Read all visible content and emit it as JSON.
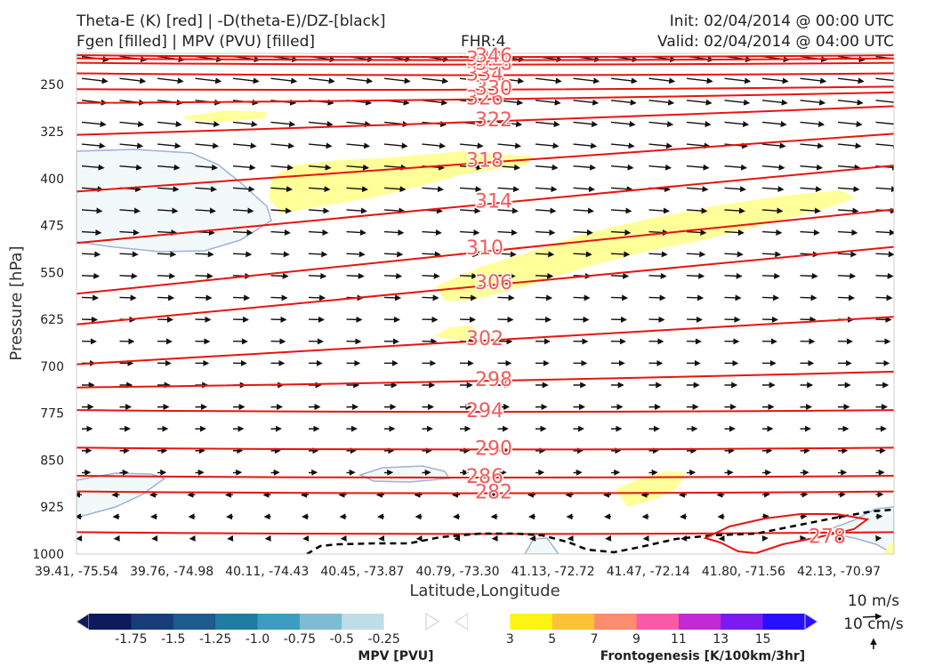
{
  "header": {
    "title_line1": "Theta-E (K) [red] | -D(theta-E)/DZ-[black]",
    "title_line2": "Fgen [filled] | MPV (PVU) [filled]",
    "fhr": "FHR:4",
    "init": "Init: 02/04/2014 @ 00:00 UTC",
    "valid": "Valid: 02/04/2014 @ 04:00 UTC"
  },
  "chart_data": {
    "type": "contour-cross-section",
    "ylabel": "Pressure [hPa]",
    "xlabel": "Latitude,Longitude",
    "yticks": [
      250,
      325,
      400,
      475,
      550,
      625,
      700,
      775,
      850,
      925,
      1000
    ],
    "ylim": [
      1000,
      200
    ],
    "xticks": [
      "39.41, -75.54",
      "39.76, -74.98",
      "40.11, -74.43",
      "40.45, -73.87",
      "40.79, -73.30",
      "41.13, -72.72",
      "41.47, -72.14",
      "41.80, -71.56",
      "42.13, -70.97"
    ],
    "theta_e_color": "#e8140e",
    "theta_e_contours": [
      {
        "label": "278",
        "p": 965
      },
      {
        "label": "282",
        "p": 900
      },
      {
        "label": "286",
        "p": 875
      },
      {
        "label": "290",
        "p": 830
      },
      {
        "label": "294",
        "p": 770
      },
      {
        "label": "298",
        "p": 720
      },
      {
        "label": "302",
        "p": 655
      },
      {
        "label": "306",
        "p": 565
      },
      {
        "label": "310",
        "p": 510
      },
      {
        "label": "314",
        "p": 435
      },
      {
        "label": "318",
        "p": 370
      },
      {
        "label": "322",
        "p": 305
      },
      {
        "label": "326",
        "p": 270
      },
      {
        "label": "330",
        "p": 255
      },
      {
        "label": "334",
        "p": 232
      },
      {
        "label": "338",
        "p": 215
      },
      {
        "label": "342",
        "p": 208
      },
      {
        "label": "346",
        "p": 203
      }
    ],
    "mpv_colorbar": {
      "label": "MPV [PVU]",
      "ticks": [
        "-1.75",
        "-1.5",
        "-1.25",
        "-1.0",
        "-0.75",
        "-0.5",
        "-0.25"
      ],
      "colors": [
        "#0d1a5e",
        "#163d7a",
        "#1d5a8e",
        "#1e7ba1",
        "#3d9dc0",
        "#7dbcd3",
        "#bfdde6",
        "#ffffff"
      ]
    },
    "fgen_colorbar": {
      "label": "Frontogenesis [K/100km/3hr]",
      "ticks": [
        "3",
        "5",
        "7",
        "9",
        "11",
        "13",
        "15"
      ],
      "colors": [
        "#ffffff",
        "#fff314",
        "#fcc23a",
        "#fb8c6e",
        "#f95aa7",
        "#c02bd4",
        "#7b1bf0",
        "#2810ff"
      ]
    },
    "vector_key": {
      "speed_label": "10 m/s",
      "vertical_label": "10 cm/s"
    }
  }
}
